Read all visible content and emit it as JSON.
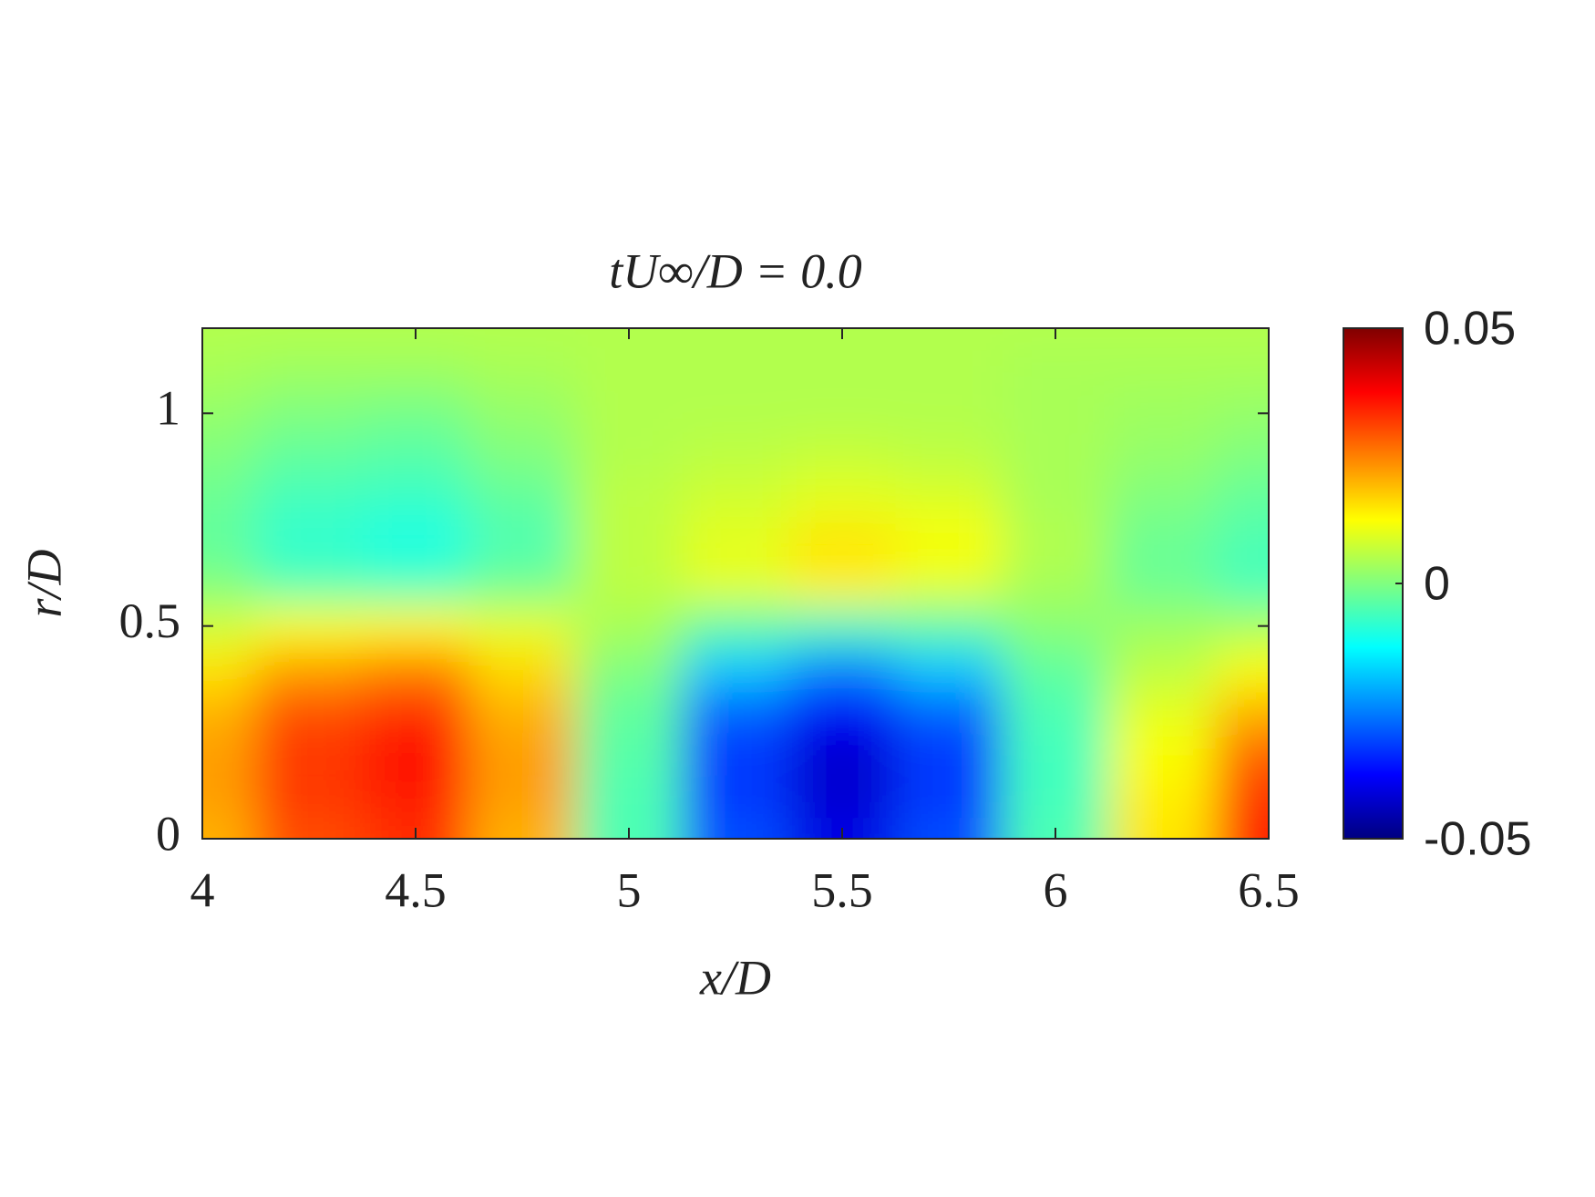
{
  "chart_data": {
    "type": "contour",
    "title": "tU∞/D = 0.0",
    "xlabel": "x/D",
    "ylabel": "r/D",
    "colormap": "jet",
    "x": [
      4,
      4.25,
      4.5,
      4.75,
      5,
      5.25,
      5.5,
      5.75,
      6,
      6.25,
      6.5
    ],
    "y": [
      0,
      0.1,
      0.2,
      0.3,
      0.4,
      0.5,
      0.6,
      0.7,
      0.8,
      0.9,
      1.0,
      1.1,
      1.2
    ],
    "z": [
      [
        0.02,
        0.03,
        0.033,
        0.02,
        -0.005,
        -0.03,
        -0.04,
        -0.03,
        -0.005,
        0.015,
        0.035
      ],
      [
        0.022,
        0.032,
        0.035,
        0.022,
        -0.005,
        -0.032,
        -0.042,
        -0.032,
        -0.006,
        0.014,
        0.032
      ],
      [
        0.022,
        0.032,
        0.036,
        0.022,
        -0.004,
        -0.032,
        -0.042,
        -0.032,
        -0.006,
        0.012,
        0.028
      ],
      [
        0.02,
        0.03,
        0.033,
        0.02,
        -0.003,
        -0.028,
        -0.038,
        -0.028,
        -0.005,
        0.01,
        0.02
      ],
      [
        0.015,
        0.022,
        0.025,
        0.016,
        0,
        -0.018,
        -0.025,
        -0.018,
        -0.003,
        0.006,
        0.012
      ],
      [
        0.008,
        0.012,
        0.013,
        0.01,
        0.004,
        -0.004,
        -0.006,
        -0.004,
        0.001,
        0.003,
        0.004
      ],
      [
        0,
        -0.005,
        -0.006,
        -0.002,
        0.006,
        0.01,
        0.014,
        0.01,
        0.004,
        -0.002,
        -0.006
      ],
      [
        -0.003,
        -0.008,
        -0.01,
        -0.005,
        0.006,
        0.01,
        0.015,
        0.012,
        0.005,
        -0.002,
        -0.005
      ],
      [
        -0.002,
        -0.006,
        -0.007,
        -0.003,
        0.006,
        0.008,
        0.01,
        0.009,
        0.004,
        0,
        -0.003
      ],
      [
        0,
        -0.003,
        -0.004,
        0,
        0.005,
        0.006,
        0.007,
        0.006,
        0.004,
        0.002,
        0
      ],
      [
        0.002,
        0,
        -0.001,
        0.002,
        0.005,
        0.005,
        0.005,
        0.005,
        0.004,
        0.003,
        0.002
      ],
      [
        0.004,
        0.003,
        0.003,
        0.004,
        0.005,
        0.005,
        0.005,
        0.005,
        0.004,
        0.004,
        0.004
      ],
      [
        0.005,
        0.005,
        0.005,
        0.005,
        0.005,
        0.005,
        0.005,
        0.005,
        0.005,
        0.005,
        0.005
      ]
    ],
    "xlim": [
      4,
      6.5
    ],
    "ylim": [
      0,
      1.2
    ],
    "xticks": [
      4,
      4.5,
      5,
      5.5,
      6,
      6.5
    ],
    "yticks": [
      0,
      0.5,
      1
    ],
    "colorbar": {
      "clim": [
        -0.05,
        0.05
      ],
      "ticks": [
        -0.05,
        0,
        0.05
      ]
    }
  }
}
